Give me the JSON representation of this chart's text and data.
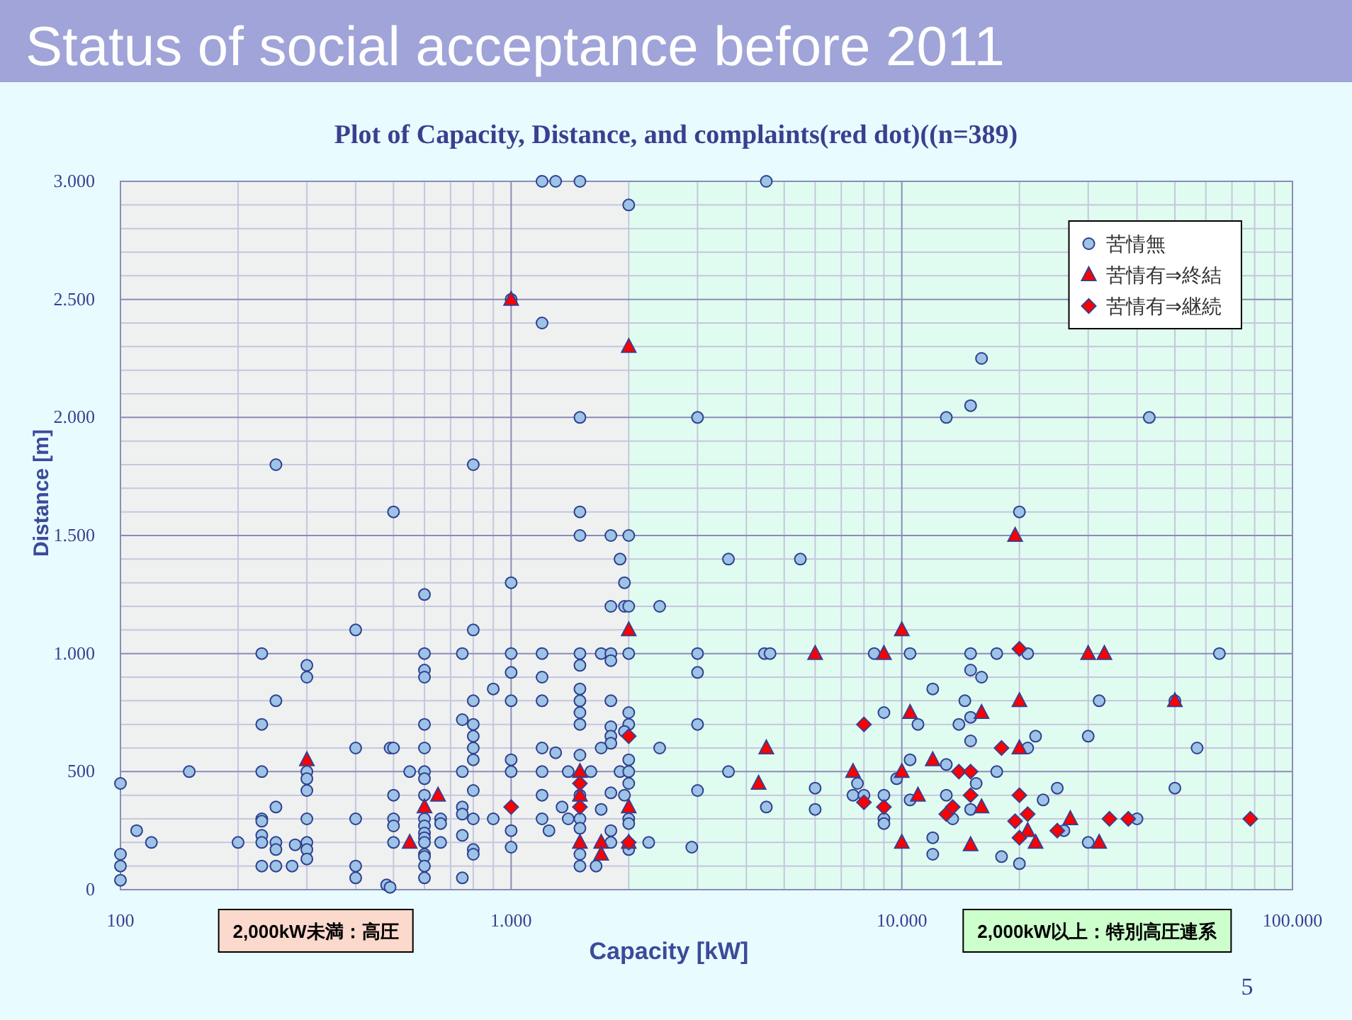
{
  "chart_data": {
    "type": "scatter",
    "title": "Status of social acceptance before 2011",
    "subtitle": "Plot of Capacity, Distance, and complaints(red dot)((n=389)",
    "xlabel": "Capacity [kW]",
    "ylabel": "Distance [m]",
    "log": "x",
    "xlim": [
      100,
      100000
    ],
    "ylim": [
      0,
      3000
    ],
    "xticks": [
      {
        "value": 100,
        "label": "100"
      },
      {
        "value": 200,
        "label": null
      },
      {
        "value": 300,
        "label": null
      },
      {
        "value": 400,
        "label": null
      },
      {
        "value": 500,
        "label": null
      },
      {
        "value": 600,
        "label": null
      },
      {
        "value": 700,
        "label": null
      },
      {
        "value": 800,
        "label": null
      },
      {
        "value": 900,
        "label": null
      },
      {
        "value": 1000,
        "label": "1.000"
      },
      {
        "value": 2000,
        "label": null
      },
      {
        "value": 3000,
        "label": null
      },
      {
        "value": 4000,
        "label": null
      },
      {
        "value": 5000,
        "label": null
      },
      {
        "value": 6000,
        "label": null
      },
      {
        "value": 7000,
        "label": null
      },
      {
        "value": 8000,
        "label": null
      },
      {
        "value": 9000,
        "label": null
      },
      {
        "value": 10000,
        "label": "10.000"
      },
      {
        "value": 20000,
        "label": null
      },
      {
        "value": 30000,
        "label": null
      },
      {
        "value": 40000,
        "label": null
      },
      {
        "value": 50000,
        "label": null
      },
      {
        "value": 60000,
        "label": null
      },
      {
        "value": 70000,
        "label": null
      },
      {
        "value": 80000,
        "label": null
      },
      {
        "value": 90000,
        "label": null
      },
      {
        "value": 100000,
        "label": "100.000"
      }
    ],
    "yticks": [
      0,
      {
        "value": 100,
        "label": null
      },
      {
        "value": 200,
        "label": null
      },
      {
        "value": 300,
        "label": null
      },
      {
        "value": 400,
        "label": null
      },
      500,
      {
        "value": 600,
        "label": null
      },
      {
        "value": 700,
        "label": null
      },
      {
        "value": 800,
        "label": null
      },
      {
        "value": 900,
        "label": null
      },
      {
        "value": 1000,
        "label": "1.000"
      },
      {
        "value": 1100,
        "label": null
      },
      {
        "value": 1200,
        "label": null
      },
      {
        "value": 1300,
        "label": null
      },
      {
        "value": 1400,
        "label": null
      },
      {
        "value": 1500,
        "label": "1.500"
      },
      {
        "value": 1600,
        "label": null
      },
      {
        "value": 1700,
        "label": null
      },
      {
        "value": 1800,
        "label": null
      },
      {
        "value": 1900,
        "label": null
      },
      {
        "value": 2000,
        "label": "2.000"
      },
      {
        "value": 2100,
        "label": null
      },
      {
        "value": 2200,
        "label": null
      },
      {
        "value": 2300,
        "label": null
      },
      {
        "value": 2400,
        "label": null
      },
      {
        "value": 2500,
        "label": "2.500"
      },
      {
        "value": 2600,
        "label": null
      },
      {
        "value": 2700,
        "label": null
      },
      {
        "value": 2800,
        "label": null
      },
      {
        "value": 2900,
        "label": null
      },
      {
        "value": 3000,
        "label": "3.000"
      }
    ],
    "grid": true,
    "legend": "top right",
    "bands": [
      {
        "axis": "x",
        "from": 100,
        "to": 2000,
        "label": "2,000kW未満：高圧",
        "color": "#fbd9cc"
      },
      {
        "axis": "x",
        "from": 2000,
        "to": 100000,
        "label": "2,000kW以上：特別高圧連系",
        "color": "#ccffcc"
      }
    ],
    "annotations": [
      "5"
    ],
    "series": [
      {
        "name": "苦情無",
        "color": "#9dc3e6",
        "marker": "circle",
        "x": [
          100,
          100,
          100,
          100,
          110,
          120,
          150,
          200,
          230,
          230,
          230,
          230,
          230,
          230,
          230,
          230,
          250,
          250,
          250,
          250,
          250,
          250,
          275,
          280,
          300,
          300,
          300,
          300,
          300,
          300,
          300,
          300,
          300,
          400,
          400,
          400,
          400,
          400,
          480,
          490,
          490,
          500,
          500,
          500,
          500,
          500,
          500,
          550,
          600,
          600,
          600,
          600,
          600,
          600,
          600,
          600,
          600,
          600,
          600,
          600,
          600,
          600,
          600,
          600,
          600,
          600,
          660,
          660,
          660,
          750,
          750,
          750,
          750,
          750,
          750,
          750,
          800,
          800,
          800,
          800,
          800,
          800,
          800,
          800,
          800,
          800,
          800,
          900,
          900,
          1200,
          1300,
          1500,
          4500,
          2000,
          1000,
          1200,
          1500,
          3000,
          1500,
          1500,
          1800,
          2000,
          1900,
          3600,
          5500,
          1950,
          1000,
          1800,
          1950,
          2000,
          2400,
          1000,
          1200,
          1500,
          1700,
          1800,
          2000,
          3000,
          4450,
          4600,
          8500,
          10500,
          1800,
          1500,
          1000,
          1200,
          3000,
          1000,
          1200,
          1500,
          1800,
          1500,
          1500,
          1500,
          2000,
          2000,
          1800,
          1800,
          1800,
          1950,
          3000,
          2400,
          1700,
          1300,
          1200,
          1500,
          2000,
          1000,
          1000,
          1200,
          1400,
          1600,
          1900,
          2000,
          3600,
          2000,
          1800,
          1950,
          1200,
          1500,
          3000,
          6000,
          7700,
          7500,
          8000,
          9000,
          9000,
          9000,
          9700,
          1000,
          1000,
          1200,
          1250,
          1400,
          1350,
          1500,
          1500,
          1500,
          1500,
          1650,
          1700,
          1800,
          1800,
          2000,
          2000,
          2000,
          2250,
          2900,
          4500,
          6000,
          16000,
          15000,
          13000,
          43000,
          20000,
          15000,
          17500,
          21000,
          65000,
          15000,
          16000,
          12000,
          14500,
          32000,
          50000,
          9000,
          11000,
          14000,
          15000,
          15000,
          21000,
          22000,
          30000,
          57000,
          10500,
          13000,
          17500,
          15500,
          25000,
          50000,
          10500,
          13000,
          23000,
          15000,
          13500,
          26000,
          40000,
          12000,
          12000,
          18000,
          20000,
          30000
        ],
        "values": [
          450,
          150,
          100,
          40,
          250,
          200,
          500,
          200,
          1000,
          700,
          500,
          300,
          290,
          230,
          200,
          100,
          800,
          350,
          200,
          170,
          100,
          1800,
          100,
          190,
          950,
          900,
          500,
          470,
          420,
          300,
          200,
          170,
          130,
          1100,
          600,
          300,
          100,
          50,
          20,
          10,
          600,
          600,
          400,
          300,
          270,
          200,
          1600,
          500,
          1250,
          1000,
          930,
          900,
          700,
          600,
          500,
          470,
          400,
          300,
          270,
          240,
          220,
          200,
          150,
          140,
          100,
          50,
          300,
          280,
          200,
          1000,
          720,
          500,
          350,
          320,
          230,
          50,
          1100,
          800,
          700,
          650,
          600,
          550,
          420,
          300,
          170,
          150,
          1800,
          850,
          300,
          3000,
          3000,
          3000,
          3000,
          2900,
          2500,
          2400,
          2000,
          2000,
          1600,
          1500,
          1500,
          1500,
          1400,
          1400,
          1400,
          1300,
          1300,
          1200,
          1200,
          1200,
          1200,
          1000,
          1000,
          1000,
          1000,
          1000,
          1000,
          1000,
          1000,
          1000,
          1000,
          1000,
          970,
          950,
          920,
          900,
          920,
          800,
          800,
          800,
          800,
          850,
          750,
          700,
          750,
          700,
          690,
          650,
          620,
          670,
          700,
          600,
          600,
          580,
          600,
          570,
          550,
          550,
          500,
          500,
          500,
          500,
          500,
          500,
          500,
          450,
          410,
          400,
          400,
          400,
          420,
          430,
          450,
          400,
          400,
          400,
          300,
          280,
          470,
          250,
          180,
          300,
          250,
          300,
          350,
          300,
          260,
          150,
          100,
          100,
          340,
          250,
          200,
          300,
          280,
          170,
          200,
          180,
          350,
          340,
          2250,
          2050,
          2000,
          2000,
          1600,
          1000,
          1000,
          1000,
          1000,
          930,
          900,
          850,
          800,
          800,
          800,
          750,
          700,
          700,
          730,
          630,
          600,
          650,
          650,
          600,
          550,
          530,
          500,
          450,
          430,
          430,
          380,
          400,
          380,
          340,
          300,
          250,
          300,
          220,
          150,
          140,
          110,
          200
        ]
      },
      {
        "name": "苦情有⇒終結",
        "color": "#ff0000",
        "marker": "triangle",
        "x": [
          1000,
          2000,
          2000,
          300,
          550,
          600,
          650,
          1500,
          1500,
          1500,
          1700,
          1700,
          2000,
          2000,
          4500,
          4300,
          6000,
          7500,
          9000,
          10000,
          10500,
          10000,
          10000,
          19500,
          20000,
          50000,
          16000,
          12000,
          11000,
          16000,
          20000,
          21000,
          22000,
          27000,
          30000,
          33000,
          15000,
          32000
        ],
        "values": [
          2500,
          2300,
          1100,
          550,
          200,
          350,
          400,
          500,
          400,
          200,
          200,
          150,
          350,
          200,
          600,
          450,
          1000,
          500,
          1000,
          1100,
          750,
          500,
          200,
          1500,
          800,
          800,
          750,
          550,
          400,
          350,
          600,
          250,
          200,
          300,
          1000,
          1000,
          190,
          200
        ]
      },
      {
        "name": "苦情有⇒継続",
        "color": "#ff0000",
        "marker": "diamond",
        "x": [
          1000,
          1500,
          1500,
          2000,
          2000,
          8000,
          8000,
          9000,
          20000,
          18000,
          14000,
          15000,
          15000,
          20000,
          13000,
          13500,
          19500,
          21000,
          20000,
          25000,
          34000,
          38000,
          78000
        ],
        "values": [
          350,
          450,
          350,
          650,
          200,
          700,
          370,
          350,
          1020,
          600,
          500,
          500,
          400,
          400,
          320,
          350,
          290,
          320,
          220,
          250,
          300,
          300,
          300
        ]
      }
    ]
  }
}
